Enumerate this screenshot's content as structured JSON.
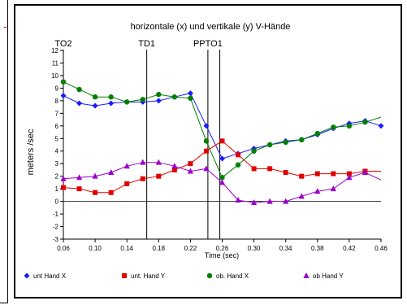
{
  "chart_data": {
    "type": "line",
    "title": "horizontale (x) und vertikale (y) V-Hände",
    "xlabel": "Time (sec)",
    "ylabel": "meters /sec",
    "xlim": [
      0.06,
      0.46
    ],
    "ylim": [
      -3,
      12
    ],
    "x_ticks": [
      "0.06",
      "0.10",
      "0.14",
      "0.18",
      "0.22",
      "0.26",
      "0.30",
      "0.34",
      "0.38",
      "0.42",
      "0.46"
    ],
    "x_tick_values": [
      0.06,
      0.1,
      0.14,
      0.18,
      0.22,
      0.26,
      0.3,
      0.34,
      0.38,
      0.42,
      0.46
    ],
    "y_ticks": [
      "-3",
      "-2",
      "-1",
      "0",
      "1",
      "2",
      "3",
      "4",
      "5",
      "6",
      "7",
      "8",
      "9",
      "10",
      "11",
      "12"
    ],
    "y_tick_values": [
      -3,
      -2,
      -1,
      0,
      1,
      2,
      3,
      4,
      5,
      6,
      7,
      8,
      9,
      10,
      11,
      12
    ],
    "grid": false,
    "legend_position": "bottom",
    "event_lines": [
      {
        "label": "TO2",
        "x": 0.06
      },
      {
        "label": "TD1",
        "x": 0.165
      },
      {
        "label": "PPTO1",
        "x": 0.242
      },
      {
        "label": "",
        "x": 0.257
      }
    ],
    "series": [
      {
        "name": "unt Hand X",
        "color": "#1a1aff",
        "marker": "diamond",
        "x": [
          0.06,
          0.08,
          0.1,
          0.12,
          0.14,
          0.16,
          0.18,
          0.2,
          0.22,
          0.24,
          0.26,
          0.28,
          0.3,
          0.32,
          0.34,
          0.36,
          0.38,
          0.4,
          0.42,
          0.44,
          0.46
        ],
        "y": [
          8.4,
          7.8,
          7.6,
          7.8,
          7.9,
          7.9,
          8.0,
          8.3,
          8.6,
          6.0,
          3.4,
          3.8,
          4.2,
          4.5,
          4.8,
          4.9,
          5.3,
          5.8,
          6.2,
          6.4,
          6.0
        ]
      },
      {
        "name": "unt. Hand Y",
        "color": "#e00000",
        "marker": "square",
        "x": [
          0.06,
          0.08,
          0.1,
          0.12,
          0.14,
          0.16,
          0.18,
          0.2,
          0.22,
          0.24,
          0.26,
          0.28,
          0.3,
          0.32,
          0.34,
          0.36,
          0.38,
          0.4,
          0.42,
          0.44,
          0.46
        ],
        "y": [
          1.1,
          1.0,
          0.7,
          0.7,
          1.4,
          1.8,
          2.0,
          2.5,
          3.0,
          4.0,
          4.8,
          3.7,
          2.6,
          2.6,
          2.3,
          2.0,
          2.2,
          2.2,
          2.2,
          2.4,
          2.4
        ]
      },
      {
        "name": "ob. Hand X",
        "color": "#008000",
        "marker": "circle",
        "x": [
          0.06,
          0.08,
          0.1,
          0.12,
          0.14,
          0.16,
          0.18,
          0.2,
          0.22,
          0.24,
          0.26,
          0.28,
          0.3,
          0.32,
          0.34,
          0.36,
          0.38,
          0.4,
          0.42,
          0.44,
          0.46
        ],
        "y": [
          9.5,
          8.9,
          8.3,
          8.3,
          7.9,
          8.1,
          8.5,
          8.3,
          8.2,
          4.8,
          1.9,
          2.9,
          4.0,
          4.5,
          4.7,
          4.9,
          5.4,
          5.9,
          6.0,
          6.3,
          6.7
        ]
      },
      {
        "name": "ob Hand Y",
        "color": "#9900cc",
        "marker": "triangle",
        "x": [
          0.06,
          0.08,
          0.1,
          0.12,
          0.14,
          0.16,
          0.18,
          0.2,
          0.22,
          0.24,
          0.26,
          0.28,
          0.3,
          0.32,
          0.34,
          0.36,
          0.38,
          0.4,
          0.42,
          0.44,
          0.46
        ],
        "y": [
          1.8,
          1.9,
          2.0,
          2.3,
          2.8,
          3.1,
          3.1,
          2.8,
          2.4,
          2.6,
          1.5,
          0.1,
          -0.1,
          0.0,
          0.0,
          0.4,
          0.8,
          1.0,
          1.9,
          2.3,
          1.7
        ]
      }
    ]
  }
}
